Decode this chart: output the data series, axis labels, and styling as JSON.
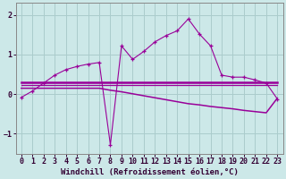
{
  "xlabel": "Windchill (Refroidissement éolien,°C)",
  "bg_color": "#cce8e8",
  "grid_color": "#aacccc",
  "line_color": "#990099",
  "x": [
    0,
    1,
    2,
    3,
    4,
    5,
    6,
    7,
    8,
    9,
    10,
    11,
    12,
    13,
    14,
    15,
    16,
    17,
    18,
    19,
    20,
    21,
    22,
    23
  ],
  "y_main": [
    -0.08,
    0.08,
    0.28,
    0.48,
    0.62,
    0.7,
    0.76,
    0.8,
    -1.28,
    1.22,
    0.88,
    1.08,
    1.32,
    1.48,
    1.6,
    1.9,
    1.52,
    1.22,
    0.48,
    0.43,
    0.43,
    0.36,
    0.28,
    -0.12
  ],
  "y_upper": [
    0.3,
    0.3,
    0.3,
    0.3,
    0.3,
    0.3,
    0.3,
    0.3,
    0.3,
    0.3,
    0.3,
    0.3,
    0.3,
    0.3,
    0.3,
    0.3,
    0.3,
    0.3,
    0.3,
    0.3,
    0.3,
    0.3,
    0.3,
    0.3
  ],
  "y_middle": [
    0.22,
    0.22,
    0.22,
    0.22,
    0.22,
    0.22,
    0.22,
    0.22,
    0.22,
    0.22,
    0.22,
    0.22,
    0.22,
    0.22,
    0.22,
    0.22,
    0.22,
    0.22,
    0.22,
    0.22,
    0.22,
    0.22,
    0.22,
    0.22
  ],
  "y_lower": [
    0.15,
    0.15,
    0.15,
    0.15,
    0.15,
    0.15,
    0.15,
    0.15,
    0.1,
    0.06,
    0.01,
    -0.04,
    -0.09,
    -0.14,
    -0.19,
    -0.24,
    -0.27,
    -0.31,
    -0.34,
    -0.37,
    -0.41,
    -0.44,
    -0.47,
    -0.1
  ],
  "ylim": [
    -1.5,
    2.3
  ],
  "xlim": [
    -0.5,
    23.5
  ],
  "yticks": [
    -1,
    0,
    1,
    2
  ],
  "xticks": [
    0,
    1,
    2,
    3,
    4,
    5,
    6,
    7,
    8,
    9,
    10,
    11,
    12,
    13,
    14,
    15,
    16,
    17,
    18,
    19,
    20,
    21,
    22,
    23
  ],
  "xlabel_fontsize": 6.5,
  "tick_fontsize": 6.0,
  "fig_width": 3.2,
  "fig_height": 2.0,
  "dpi": 100
}
